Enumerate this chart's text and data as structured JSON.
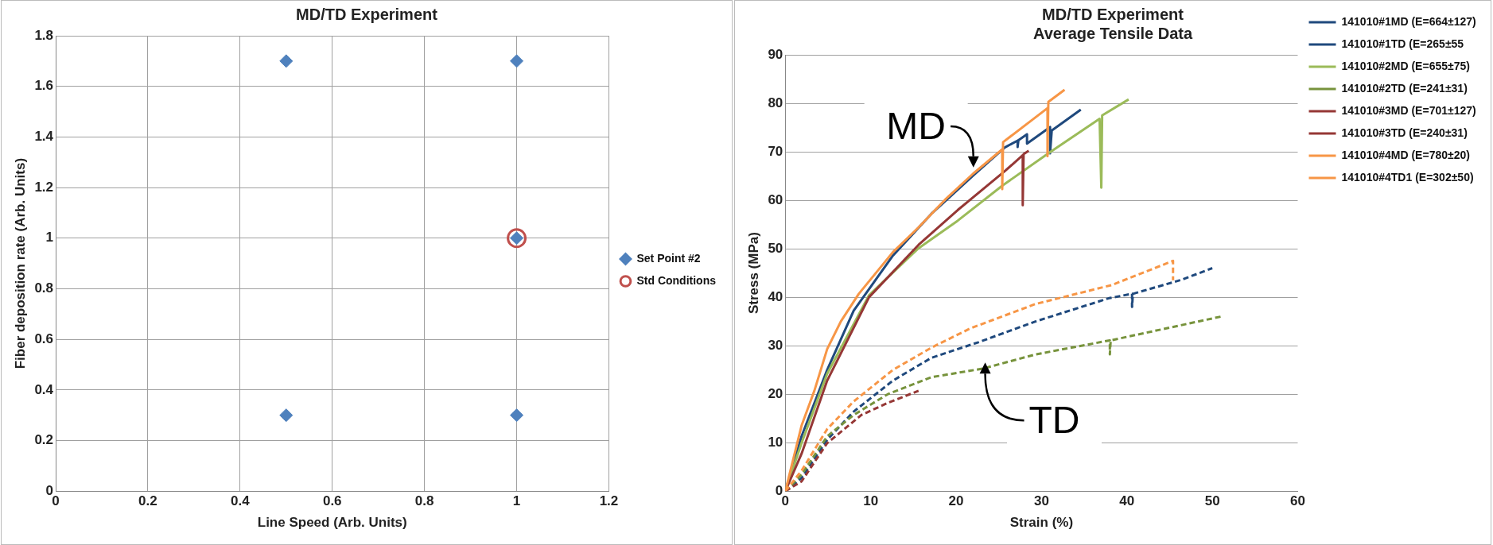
{
  "chart_data": [
    {
      "type": "scatter",
      "title": "MD/TD Experiment",
      "xlabel": "Line Speed (Arb. Units)",
      "ylabel": "Fiber deposition rate (Arb. Units)",
      "series": [
        {
          "name": "Set Point #2",
          "color": "#4f81bd",
          "marker": "diamond",
          "x": [
            0.5,
            1,
            1,
            0.5,
            1
          ],
          "values": [
            1.7,
            1.7,
            1,
            0.3,
            0.3
          ]
        },
        {
          "name": "Std Conditions",
          "color": "#c0504d",
          "marker": "circle",
          "x": [
            1
          ],
          "values": [
            1
          ]
        }
      ],
      "xlim": [
        0,
        1.2
      ],
      "xticks": [
        0,
        0.2,
        0.4,
        0.6,
        0.8,
        1,
        1.2
      ],
      "ylim": [
        0,
        1.8
      ],
      "yticks": [
        0,
        0.2,
        0.4,
        0.6,
        0.8,
        1,
        1.2,
        1.4,
        1.6,
        1.8
      ],
      "grid": true,
      "legend": "right"
    },
    {
      "type": "line",
      "title": "MD/TD Experiment",
      "subtitle": "Average Tensile Data",
      "xlabel": "Strain (%)",
      "ylabel": "Stress (MPa)",
      "series": [
        {
          "name": "141010#1MD (E=664±127)",
          "color": "#1f497d",
          "line_style": "solid",
          "x": [
            0,
            1.9,
            4.9,
            8,
            12.6,
            17.1,
            22,
            25.7,
            27.2,
            27.2,
            27.3,
            28.3,
            28.3,
            31,
            31,
            31.2,
            34.6
          ],
          "values": [
            0,
            11.3,
            25,
            37.2,
            48.6,
            57.2,
            65.1,
            70.9,
            72.3,
            71,
            72.4,
            73.6,
            71.7,
            75.1,
            69.7,
            74.4,
            78.7
          ]
        },
        {
          "name": "141010#1TD (E=265±55",
          "color": "#1f497d",
          "line_style": "dashed",
          "x": [
            0,
            1.9,
            4.9,
            8,
            12.6,
            17.1,
            22.6,
            29.3,
            37.9,
            40.6,
            40.6,
            40.7,
            46.4,
            50
          ],
          "values": [
            0,
            2.7,
            10.6,
            16.4,
            22.8,
            27.5,
            30.7,
            35,
            39.8,
            40.7,
            38,
            40.7,
            43.6,
            46
          ]
        },
        {
          "name": "141010#2MD (E=655±75)",
          "color": "#9bbb59",
          "line_style": "solid",
          "x": [
            0,
            1.9,
            4.9,
            9.8,
            15.6,
            20.2,
            25.4,
            30.9,
            36.8,
            37,
            37.1,
            40.2
          ],
          "values": [
            0,
            9.9,
            24.2,
            40.4,
            50.1,
            55.8,
            63,
            69.8,
            76.8,
            62.6,
            77.5,
            80.8
          ]
        },
        {
          "name": "141010#2TD (E=241±31)",
          "color": "#77933c",
          "line_style": "dashed",
          "x": [
            0,
            1.9,
            4.9,
            8,
            12,
            17.1,
            23.2,
            29.3,
            38,
            38,
            38.1,
            51
          ],
          "values": [
            0,
            3.4,
            11.3,
            15.7,
            20,
            23.5,
            25.3,
            28.2,
            31.1,
            28.2,
            31.1,
            36
          ]
        },
        {
          "name": "141010#3MD (E=701±127)",
          "color": "#953735",
          "line_style": "solid",
          "x": [
            0,
            1.9,
            4.9,
            9.8,
            15.6,
            20.2,
            25.7,
            27.8,
            27.8,
            27.9,
            28.5
          ],
          "values": [
            0,
            7.7,
            22.8,
            40,
            50.8,
            58,
            66,
            69.3,
            59,
            69.5,
            70.2
          ]
        },
        {
          "name": "141010#3TD (E=240±31)",
          "color": "#953735",
          "line_style": "dashed",
          "x": [
            0,
            1.9,
            4.9,
            8.9,
            12,
            15.6
          ],
          "values": [
            0,
            2,
            9.9,
            15.7,
            18.2,
            20.7
          ]
        },
        {
          "name": "141010#4MD (E=780±20)",
          "color": "#f79646",
          "line_style": "solid",
          "x": [
            0,
            1.9,
            3.4,
            4.9,
            6.5,
            8.6,
            12.6,
            15.6,
            18.7,
            22,
            25.4,
            25.4,
            25.5,
            30.7,
            30.7,
            30.8,
            32.7
          ],
          "values": [
            0,
            13.5,
            20.7,
            29.3,
            35,
            40.7,
            49.3,
            54.4,
            60.1,
            65.5,
            70.5,
            62.3,
            72,
            79,
            69.1,
            80.3,
            82.8
          ]
        },
        {
          "name": "141010#4TD1 (E=302±50)",
          "color": "#f79646",
          "line_style": "dashed",
          "x": [
            0,
            1.9,
            4.9,
            8,
            12.6,
            17.1,
            21.7,
            29.3,
            38.2,
            45.4,
            45.4
          ],
          "values": [
            0,
            4.2,
            12.8,
            18.5,
            25,
            29.6,
            33.6,
            38.6,
            42.5,
            47.5,
            43.5
          ]
        }
      ],
      "annotations": [
        "MD",
        "TD"
      ],
      "xlim": [
        0,
        60
      ],
      "xticks": [
        0,
        10,
        20,
        30,
        40,
        50,
        60
      ],
      "ylim": [
        0,
        90
      ],
      "yticks": [
        0,
        10,
        20,
        30,
        40,
        50,
        60,
        70,
        80,
        90
      ],
      "grid": "y",
      "legend": "top right",
      "marker": "none"
    }
  ]
}
